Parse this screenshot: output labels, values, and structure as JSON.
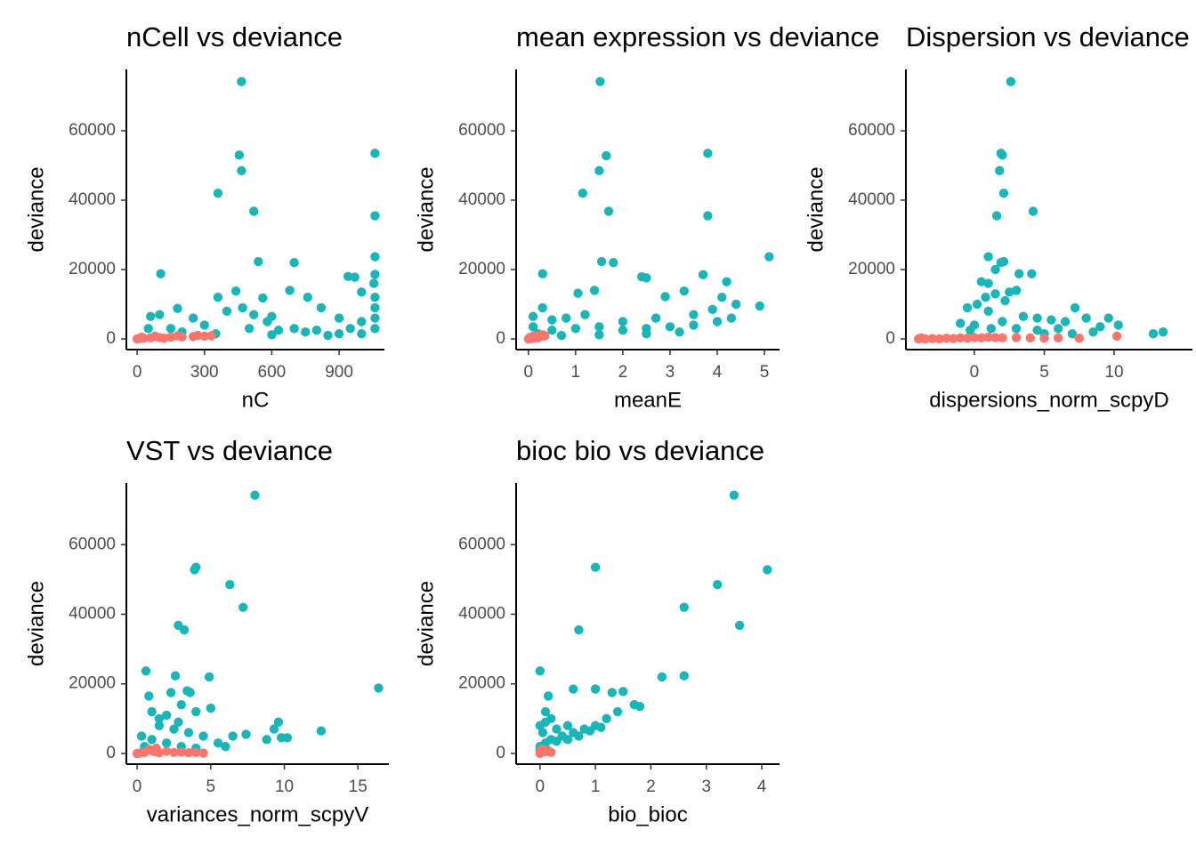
{
  "chart_data": [
    {
      "type": "scatter",
      "title": "nCell vs deviance",
      "xlabel": "nC",
      "ylabel": "deviance",
      "xlim": [
        -48,
        1102
      ],
      "ylim": [
        -3077,
        77700
      ],
      "xticks": [
        0,
        300,
        600,
        900
      ],
      "yticks": [
        0,
        20000,
        40000,
        60000
      ],
      "series": [
        {
          "color": "#19b6b9",
          "x": [
            465,
            455,
            465,
            360,
            520,
            1060,
            1060,
            1060,
            1060,
            105,
            540,
            700,
            940,
            970,
            1055,
            1060,
            1000,
            680,
            440,
            360,
            760,
            820,
            180,
            60,
            100,
            250,
            400,
            600,
            900,
            1000,
            50,
            150,
            300,
            500,
            700,
            800,
            950,
            1060,
            1060,
            1060,
            200,
            350,
            600,
            850,
            1000,
            560,
            470,
            520,
            580,
            630,
            750,
            900
          ],
          "values": [
            74200,
            53000,
            48500,
            42000,
            36800,
            53500,
            35500,
            23700,
            18600,
            18800,
            22300,
            22000,
            18000,
            17800,
            16000,
            12000,
            13500,
            14000,
            13800,
            12000,
            12000,
            9000,
            8800,
            6500,
            7000,
            6000,
            8000,
            6500,
            6000,
            5000,
            3000,
            3000,
            4000,
            3000,
            3000,
            2500,
            3000,
            3000,
            6000,
            9000,
            2000,
            1500,
            1200,
            1000,
            1500,
            11800,
            9000,
            7000,
            5000,
            2500,
            2000,
            1500
          ]
        },
        {
          "color": "#f8766d",
          "x": [
            0,
            10,
            30,
            60,
            100,
            150,
            200,
            250,
            300,
            330,
            20,
            80,
            180,
            270,
            120
          ],
          "values": [
            0,
            100,
            200,
            300,
            400,
            500,
            600,
            700,
            800,
            900,
            500,
            800,
            900,
            1000,
            200
          ]
        }
      ]
    },
    {
      "type": "scatter",
      "title": "mean expression vs deviance",
      "xlabel": "meanE",
      "ylabel": "deviance",
      "xlim": [
        -0.26,
        5.32
      ],
      "ylim": [
        -3077,
        77700
      ],
      "xticks": [
        0,
        1,
        2,
        3,
        4,
        5
      ],
      "yticks": [
        0,
        20000,
        40000,
        60000
      ],
      "series": [
        {
          "color": "#19b6b9",
          "x": [
            1.52,
            3.8,
            1.65,
            1.5,
            1.15,
            1.7,
            3.8,
            5.1,
            1.55,
            1.8,
            0.3,
            2.4,
            2.5,
            3.7,
            4.2,
            1.4,
            3.3,
            1.05,
            2.9,
            4.1,
            4.9,
            4.4,
            0.1,
            0.3,
            0.5,
            0.8,
            1.2,
            2,
            2.7,
            3.5,
            3.9,
            4.3,
            0.5,
            1,
            1.5,
            2,
            2.5,
            3,
            3.5,
            0.2,
            0.7,
            1.5,
            2.5,
            3.2,
            4,
            0.1
          ],
          "values": [
            74200,
            53500,
            52800,
            48500,
            42000,
            36800,
            35500,
            23700,
            22300,
            22000,
            18800,
            17900,
            17600,
            18500,
            16500,
            14000,
            13800,
            13200,
            12200,
            12000,
            9500,
            10000,
            6500,
            9000,
            5500,
            6000,
            7000,
            5000,
            6000,
            7000,
            8500,
            6000,
            2500,
            3000,
            3500,
            2500,
            3000,
            3500,
            4000,
            1500,
            1000,
            1200,
            1500,
            2000,
            5000,
            3500
          ]
        },
        {
          "color": "#f8766d",
          "x": [
            0,
            0.02,
            0.05,
            0.1,
            0.15,
            0.2,
            0.25,
            0.3,
            0.35,
            0.05,
            0.1,
            0.2
          ],
          "values": [
            0,
            300,
            500,
            800,
            400,
            1000,
            700,
            1200,
            900,
            100,
            200,
            300
          ]
        }
      ]
    },
    {
      "type": "scatter",
      "title": "Dispersion vs deviance",
      "xlabel": "dispersions_norm_scpyD",
      "ylabel": "deviance",
      "xlim": [
        -4.9,
        15.6
      ],
      "ylim": [
        -3077,
        77700
      ],
      "xticks": [
        0,
        5,
        10
      ],
      "yticks": [
        0,
        20000,
        40000,
        60000
      ],
      "series": [
        {
          "color": "#19b6b9",
          "x": [
            2.6,
            1.9,
            2,
            1.8,
            2.1,
            1.6,
            4.2,
            2.1,
            1.9,
            1,
            3.2,
            4.1,
            1.5,
            0.5,
            1,
            2.5,
            3,
            0.8,
            1.5,
            2.2,
            -0.5,
            0.2,
            1,
            3.5,
            4.5,
            5.5,
            7.2,
            6.5,
            8,
            9.6,
            10.3,
            9,
            6,
            4.5,
            12.8,
            13.5,
            -1,
            0,
            2,
            3,
            -0.3,
            1.2,
            5,
            7,
            8.5
          ],
          "values": [
            74200,
            53500,
            53000,
            48500,
            42000,
            35500,
            36800,
            22300,
            22000,
            23700,
            18800,
            18800,
            20000,
            16500,
            16000,
            13500,
            14000,
            12000,
            13000,
            11000,
            9000,
            10000,
            8000,
            6500,
            6000,
            5500,
            9000,
            5000,
            6000,
            6000,
            4000,
            3500,
            3000,
            2500,
            1500,
            2000,
            4500,
            4000,
            5000,
            3000,
            2500,
            3000,
            1500,
            1500,
            2000
          ]
        },
        {
          "color": "#f8766d",
          "x": [
            -4,
            -3.5,
            -3,
            -2.5,
            -2,
            -1.5,
            -1,
            -0.5,
            0,
            0.5,
            1,
            1.5,
            2,
            3,
            4,
            5,
            6,
            7.5,
            10.2,
            -3.8
          ],
          "values": [
            0,
            0,
            100,
            0,
            200,
            100,
            300,
            200,
            400,
            300,
            500,
            400,
            300,
            400,
            300,
            200,
            300,
            200,
            800,
            300
          ]
        }
      ]
    },
    {
      "type": "scatter",
      "title": "VST vs deviance",
      "xlabel": "variances_norm_scpyV",
      "ylabel": "deviance",
      "xlim": [
        -0.73,
        17.1
      ],
      "ylim": [
        -3077,
        77700
      ],
      "xticks": [
        0,
        5,
        10,
        15
      ],
      "yticks": [
        0,
        20000,
        40000,
        60000
      ],
      "series": [
        {
          "color": "#19b6b9",
          "x": [
            8,
            4,
            3.9,
            6.3,
            7.2,
            2.8,
            3.2,
            0.6,
            2.6,
            4.9,
            16.4,
            0.8,
            2.3,
            3.4,
            3.6,
            12.5,
            9.6,
            9.8,
            10.2,
            9.3,
            8.8,
            7.4,
            6.5,
            5,
            4,
            1,
            2,
            3,
            1.5,
            2.5,
            3.5,
            4.5,
            5.5,
            6,
            0.3,
            1,
            2,
            3,
            4,
            0.5,
            1.5,
            2.8
          ],
          "values": [
            74200,
            53500,
            52800,
            48500,
            42000,
            36800,
            35500,
            23700,
            22300,
            22000,
            18800,
            16500,
            17500,
            18000,
            17500,
            6500,
            9000,
            4500,
            4500,
            7000,
            4000,
            5500,
            5000,
            13000,
            12000,
            12000,
            11000,
            14000,
            8000,
            7000,
            6000,
            5000,
            3000,
            2000,
            5000,
            4000,
            3000,
            2000,
            1500,
            2000,
            10000,
            9000
          ]
        },
        {
          "color": "#f8766d",
          "x": [
            0,
            0.2,
            0.5,
            1,
            1.2,
            1.5,
            2,
            2.5,
            3,
            3.5,
            4,
            4.5,
            0.8,
            1.3
          ],
          "values": [
            0,
            100,
            300,
            800,
            500,
            200,
            600,
            300,
            400,
            200,
            300,
            100,
            1200,
            1500
          ]
        }
      ]
    },
    {
      "type": "scatter",
      "title": "bioc bio vs deviance",
      "xlabel": "bio_bioc",
      "ylabel": "deviance",
      "xlim": [
        -0.43,
        4.32
      ],
      "ylim": [
        -3077,
        77700
      ],
      "xticks": [
        0,
        1,
        2,
        3,
        4
      ],
      "yticks": [
        0,
        20000,
        40000,
        60000
      ],
      "series": [
        {
          "color": "#19b6b9",
          "x": [
            3.5,
            1,
            4.1,
            3.2,
            2.6,
            3.6,
            0.7,
            0,
            2.2,
            2.6,
            0.15,
            0.6,
            1,
            1.3,
            1.5,
            1.8,
            1.7,
            1.4,
            1.2,
            1,
            0.8,
            0.6,
            0.4,
            0.2,
            0,
            0.05,
            0.1,
            0.2,
            0.3,
            0.5,
            0.7,
            0.9,
            1.1,
            0,
            0.1,
            0.3,
            0.5,
            0.1,
            0
          ],
          "values": [
            74200,
            53500,
            52800,
            48500,
            42000,
            36800,
            35500,
            23700,
            22000,
            22300,
            16500,
            18500,
            18500,
            17500,
            17800,
            13500,
            14000,
            12000,
            10000,
            8000,
            7000,
            6000,
            5000,
            4000,
            2000,
            6000,
            9000,
            10000,
            7000,
            8000,
            5000,
            6500,
            7500,
            1000,
            3000,
            3500,
            4000,
            12000,
            8000
          ]
        },
        {
          "color": "#f8766d",
          "x": [
            0,
            0.02,
            0.05,
            0.08,
            0.1,
            0.15,
            0.2,
            0.03
          ],
          "values": [
            0,
            200,
            600,
            1000,
            500,
            800,
            300,
            1200
          ]
        }
      ]
    }
  ]
}
